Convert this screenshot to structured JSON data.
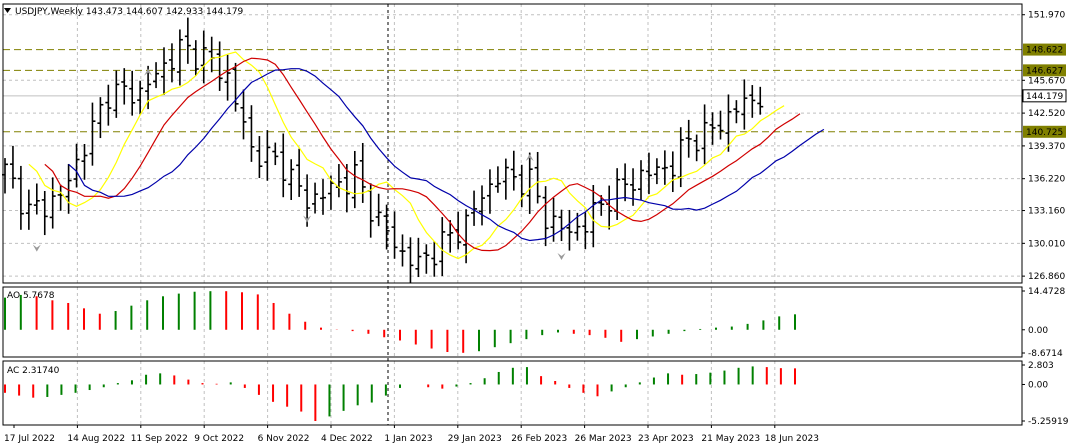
{
  "header": {
    "menu_icon": "triangle-down-icon",
    "text": "USDJPY,Weekly  143.473 144.607 142.933 144.179"
  },
  "colors": {
    "bars": "#000000",
    "ma_fast": "#ffff00",
    "ma_mid": "#d00000",
    "ma_slow": "#0000aa",
    "level_line": "#808000",
    "ao_up": "#008000",
    "ao_down": "#ff0000",
    "grid": "#c0c0c0",
    "fractal": "#9a9a9a",
    "current_price_box": "#ffffff"
  },
  "chart_data": [
    {
      "type": "ohlc",
      "title": "USDJPY,Weekly",
      "price_ticks": [
        "151.970",
        "145.670",
        "142.520",
        "139.370",
        "136.220",
        "133.160",
        "130.010",
        "126.860"
      ],
      "level_labels": [
        "148.622",
        "146.627",
        "140.725"
      ],
      "current_price": "144.179",
      "x_ticks": [
        "17 Jul 2022",
        "14 Aug 2022",
        "11 Sep 2022",
        "9 Oct 2022",
        "6 Nov 2022",
        "4 Dec 2022",
        "1 Jan 2023",
        "29 Jan 2023",
        "26 Feb 2023",
        "26 Mar 2023",
        "23 Apr 2023",
        "21 May 2023",
        "18 Jun 2023"
      ],
      "grid": true,
      "ohlc_sample": [
        {
          "week": "17 Jul 2022",
          "open": 138.0,
          "high": 139.4,
          "low": 136.0,
          "close": 136.2
        },
        {
          "week": "14 Aug 2022",
          "open": 133.5,
          "high": 137.0,
          "low": 133.0,
          "close": 136.9
        },
        {
          "week": "11 Sep 2022",
          "open": 142.5,
          "high": 145.0,
          "low": 141.0,
          "close": 143.0
        },
        {
          "week": "9 Oct 2022",
          "open": 145.3,
          "high": 149.0,
          "low": 145.0,
          "close": 148.7
        },
        {
          "week": "6 Nov 2022",
          "open": 146.5,
          "high": 147.8,
          "low": 138.5,
          "close": 138.8
        },
        {
          "week": "4 Dec 2022",
          "open": 134.3,
          "high": 137.5,
          "low": 133.6,
          "close": 136.6
        },
        {
          "week": "1 Jan 2023",
          "open": 131.0,
          "high": 134.8,
          "low": 129.5,
          "close": 132.1
        },
        {
          "week": "29 Jan 2023",
          "open": 129.9,
          "high": 131.2,
          "low": 128.0,
          "close": 131.1
        },
        {
          "week": "26 Feb 2023",
          "open": 136.4,
          "high": 137.1,
          "low": 134.0,
          "close": 135.9
        },
        {
          "week": "26 Mar 2023",
          "open": 130.9,
          "high": 133.2,
          "low": 130.5,
          "close": 132.9
        },
        {
          "week": "23 Apr 2023",
          "open": 134.2,
          "high": 135.2,
          "low": 133.0,
          "close": 136.3
        },
        {
          "week": "21 May 2023",
          "open": 137.8,
          "high": 140.9,
          "low": 137.4,
          "close": 140.7
        },
        {
          "week": "18 Jun 2023",
          "open": 143.5,
          "high": 144.6,
          "low": 142.9,
          "close": 144.18
        }
      ]
    },
    {
      "type": "bar",
      "title": "AO 5.7678",
      "ticks": [
        "14.4728",
        "0.00",
        "-8.6714"
      ],
      "ylim": [
        -8.6714,
        14.4728
      ],
      "values": [
        12,
        13,
        12.5,
        11,
        10,
        8,
        6,
        7,
        9,
        11,
        12.5,
        13.5,
        14.2,
        14.4,
        14.4,
        14,
        13.2,
        10,
        6,
        3,
        0.8,
        0.1,
        -0.5,
        -1.5,
        -2.8,
        -4,
        -5.5,
        -7,
        -8.3,
        -8.6,
        -8,
        -6.5,
        -5,
        -3.5,
        -2,
        -1,
        -1.5,
        -2,
        -3,
        -4.5,
        -3.5,
        -2.5,
        -1.5,
        -0.5,
        0.3,
        0.8,
        1.2,
        2.2,
        3.5,
        5,
        5.77
      ]
    },
    {
      "type": "bar",
      "title": "AC 2.31740",
      "ticks": [
        "2.803",
        "0.00",
        "-5.25919"
      ],
      "ylim": [
        -5.25919,
        2.803
      ],
      "values": [
        -1.2,
        -1.6,
        -1.9,
        -1.8,
        -1.5,
        -1.2,
        -0.8,
        -0.4,
        0.2,
        0.6,
        1.4,
        1.6,
        1.3,
        0.7,
        0.2,
        0.1,
        0.3,
        -0.5,
        -1.5,
        -2.5,
        -3.2,
        -3.9,
        -5.26,
        -4.6,
        -3.8,
        -3.0,
        -2.6,
        -1.6,
        -0.5,
        0.0,
        -0.4,
        -0.6,
        -0.3,
        0.2,
        0.9,
        1.8,
        2.4,
        2.5,
        1.2,
        0.5,
        -0.5,
        -1.2,
        -1.7,
        -1.0,
        -0.4,
        0.3,
        1.0,
        1.6,
        1.4,
        1.5,
        1.7,
        2.0,
        2.4,
        2.6,
        2.5,
        2.35,
        2.32
      ]
    }
  ]
}
